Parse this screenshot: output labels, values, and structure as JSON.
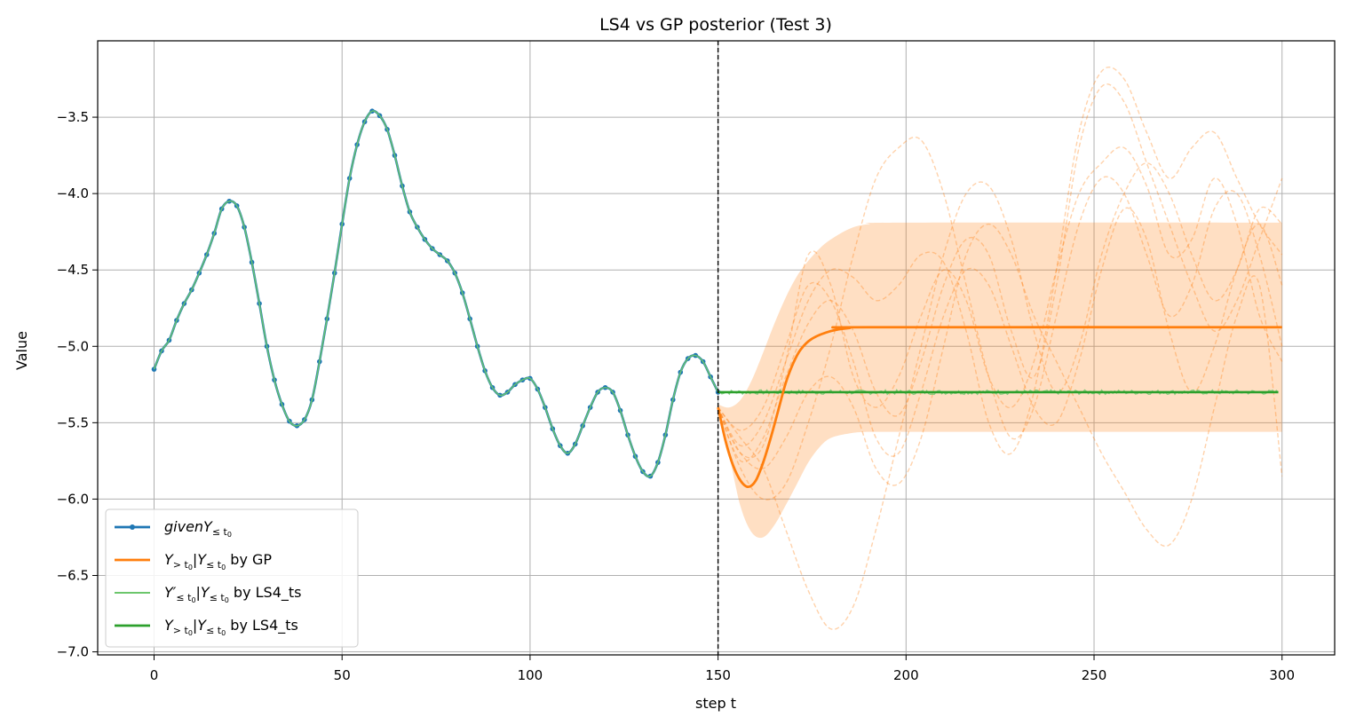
{
  "chart_data": {
    "type": "line",
    "title": "LS4 vs GP posterior (Test 3)",
    "xlabel": "step t",
    "ylabel": "Value",
    "xlim": [
      -15,
      314
    ],
    "ylim": [
      -7.02,
      -3.0
    ],
    "xticks": [
      0,
      50,
      100,
      150,
      200,
      250,
      300
    ],
    "yticks": [
      -7.0,
      -6.5,
      -6.0,
      -5.5,
      -5.0,
      -4.5,
      -4.0,
      -3.5
    ],
    "grid": true,
    "legend_position": "lower-left",
    "vline": {
      "x": 150,
      "style": "dashed",
      "color": "#000000"
    },
    "observed": {
      "color": "#1f77b4",
      "points": [
        [
          0,
          -5.15
        ],
        [
          2,
          -5.03
        ],
        [
          4,
          -4.96
        ],
        [
          6,
          -4.83
        ],
        [
          8,
          -4.72
        ],
        [
          10,
          -4.63
        ],
        [
          12,
          -4.52
        ],
        [
          14,
          -4.4
        ],
        [
          16,
          -4.26
        ],
        [
          18,
          -4.1
        ],
        [
          20,
          -4.05
        ],
        [
          22,
          -4.08
        ],
        [
          24,
          -4.22
        ],
        [
          26,
          -4.45
        ],
        [
          28,
          -4.72
        ],
        [
          30,
          -5.0
        ],
        [
          32,
          -5.22
        ],
        [
          34,
          -5.38
        ],
        [
          36,
          -5.49
        ],
        [
          38,
          -5.52
        ],
        [
          40,
          -5.48
        ],
        [
          42,
          -5.35
        ],
        [
          44,
          -5.1
        ],
        [
          46,
          -4.82
        ],
        [
          48,
          -4.52
        ],
        [
          50,
          -4.2
        ],
        [
          52,
          -3.9
        ],
        [
          54,
          -3.68
        ],
        [
          56,
          -3.53
        ],
        [
          58,
          -3.46
        ],
        [
          60,
          -3.49
        ],
        [
          62,
          -3.58
        ],
        [
          64,
          -3.75
        ],
        [
          66,
          -3.95
        ],
        [
          68,
          -4.12
        ],
        [
          70,
          -4.22
        ],
        [
          72,
          -4.3
        ],
        [
          74,
          -4.36
        ],
        [
          76,
          -4.4
        ],
        [
          78,
          -4.44
        ],
        [
          80,
          -4.52
        ],
        [
          82,
          -4.65
        ],
        [
          84,
          -4.82
        ],
        [
          86,
          -5.0
        ],
        [
          88,
          -5.16
        ],
        [
          90,
          -5.27
        ],
        [
          92,
          -5.32
        ],
        [
          94,
          -5.3
        ],
        [
          96,
          -5.25
        ],
        [
          98,
          -5.22
        ],
        [
          100,
          -5.21
        ],
        [
          102,
          -5.28
        ],
        [
          104,
          -5.4
        ],
        [
          106,
          -5.54
        ],
        [
          108,
          -5.65
        ],
        [
          110,
          -5.7
        ],
        [
          112,
          -5.64
        ],
        [
          114,
          -5.52
        ],
        [
          116,
          -5.4
        ],
        [
          118,
          -5.3
        ],
        [
          120,
          -5.27
        ],
        [
          122,
          -5.3
        ],
        [
          124,
          -5.42
        ],
        [
          126,
          -5.58
        ],
        [
          128,
          -5.72
        ],
        [
          130,
          -5.82
        ],
        [
          132,
          -5.85
        ],
        [
          134,
          -5.76
        ],
        [
          136,
          -5.58
        ],
        [
          138,
          -5.35
        ],
        [
          140,
          -5.17
        ],
        [
          142,
          -5.08
        ],
        [
          144,
          -5.06
        ],
        [
          146,
          -5.1
        ],
        [
          148,
          -5.2
        ],
        [
          150,
          -5.3
        ]
      ]
    },
    "gp_mean": {
      "color": "#ff7f0e",
      "points": [
        [
          150,
          -5.4
        ],
        [
          152,
          -5.62
        ],
        [
          154,
          -5.78
        ],
        [
          156,
          -5.88
        ],
        [
          158,
          -5.92
        ],
        [
          160,
          -5.88
        ],
        [
          162,
          -5.76
        ],
        [
          164,
          -5.6
        ],
        [
          166,
          -5.42
        ],
        [
          168,
          -5.24
        ],
        [
          170,
          -5.11
        ],
        [
          172,
          -5.02
        ],
        [
          175,
          -4.95
        ],
        [
          180,
          -4.9
        ],
        [
          185,
          -4.88
        ],
        [
          190,
          -4.875
        ],
        [
          300,
          -4.875
        ]
      ]
    },
    "gp_band": {
      "color": "#ff7f0e",
      "upper": [
        [
          150,
          -5.38
        ],
        [
          153,
          -5.4
        ],
        [
          156,
          -5.35
        ],
        [
          159,
          -5.22
        ],
        [
          162,
          -5.04
        ],
        [
          165,
          -4.85
        ],
        [
          168,
          -4.68
        ],
        [
          171,
          -4.54
        ],
        [
          174,
          -4.44
        ],
        [
          177,
          -4.36
        ],
        [
          180,
          -4.3
        ],
        [
          185,
          -4.23
        ],
        [
          190,
          -4.2
        ],
        [
          200,
          -4.19
        ],
        [
          300,
          -4.19
        ]
      ],
      "lower": [
        [
          300,
          -5.56
        ],
        [
          200,
          -5.56
        ],
        [
          190,
          -5.56
        ],
        [
          185,
          -5.57
        ],
        [
          180,
          -5.6
        ],
        [
          177,
          -5.66
        ],
        [
          174,
          -5.76
        ],
        [
          171,
          -5.9
        ],
        [
          168,
          -6.04
        ],
        [
          165,
          -6.17
        ],
        [
          162,
          -6.25
        ],
        [
          159,
          -6.22
        ],
        [
          156,
          -6.05
        ],
        [
          153,
          -5.72
        ],
        [
          150,
          -5.42
        ]
      ]
    },
    "gp_samples": [
      [
        [
          150,
          -5.4
        ],
        [
          156,
          -5.7
        ],
        [
          162,
          -5.65
        ],
        [
          168,
          -5.1
        ],
        [
          174,
          -4.4
        ],
        [
          180,
          -4.6
        ],
        [
          186,
          -5.2
        ],
        [
          192,
          -5.4
        ],
        [
          198,
          -5.2
        ],
        [
          204,
          -4.8
        ],
        [
          210,
          -4.5
        ],
        [
          216,
          -4.7
        ],
        [
          222,
          -5.2
        ],
        [
          228,
          -5.4
        ],
        [
          234,
          -5.1
        ],
        [
          240,
          -4.5
        ],
        [
          246,
          -4.0
        ],
        [
          252,
          -3.8
        ],
        [
          258,
          -3.7
        ],
        [
          264,
          -3.95
        ],
        [
          270,
          -4.4
        ],
        [
          276,
          -4.3
        ],
        [
          282,
          -3.9
        ],
        [
          288,
          -4.2
        ],
        [
          294,
          -4.8
        ],
        [
          300,
          -5.1
        ]
      ],
      [
        [
          150,
          -5.4
        ],
        [
          156,
          -5.8
        ],
        [
          162,
          -6.0
        ],
        [
          168,
          -5.9
        ],
        [
          174,
          -5.5
        ],
        [
          180,
          -5.0
        ],
        [
          186,
          -4.4
        ],
        [
          192,
          -3.9
        ],
        [
          198,
          -3.7
        ],
        [
          204,
          -3.65
        ],
        [
          210,
          -4.0
        ],
        [
          216,
          -4.6
        ],
        [
          222,
          -5.2
        ],
        [
          228,
          -5.6
        ],
        [
          234,
          -5.4
        ],
        [
          240,
          -4.8
        ],
        [
          246,
          -4.2
        ],
        [
          252,
          -3.9
        ],
        [
          258,
          -4.0
        ],
        [
          264,
          -4.4
        ],
        [
          270,
          -4.8
        ],
        [
          276,
          -4.6
        ],
        [
          282,
          -4.1
        ],
        [
          288,
          -4.0
        ],
        [
          294,
          -4.4
        ],
        [
          300,
          -5.0
        ]
      ],
      [
        [
          150,
          -5.4
        ],
        [
          156,
          -5.75
        ],
        [
          162,
          -5.6
        ],
        [
          168,
          -5.2
        ],
        [
          174,
          -4.85
        ],
        [
          180,
          -4.7
        ],
        [
          186,
          -4.9
        ],
        [
          192,
          -5.3
        ],
        [
          198,
          -5.45
        ],
        [
          204,
          -5.1
        ],
        [
          210,
          -4.6
        ],
        [
          216,
          -4.3
        ],
        [
          222,
          -4.4
        ],
        [
          228,
          -4.9
        ],
        [
          234,
          -5.2
        ],
        [
          240,
          -4.6
        ],
        [
          246,
          -3.7
        ],
        [
          252,
          -3.3
        ],
        [
          258,
          -3.4
        ],
        [
          264,
          -3.8
        ],
        [
          270,
          -4.2
        ],
        [
          276,
          -4.6
        ],
        [
          282,
          -4.9
        ],
        [
          288,
          -4.7
        ],
        [
          294,
          -4.3
        ],
        [
          300,
          -3.9
        ]
      ],
      [
        [
          150,
          -5.4
        ],
        [
          156,
          -5.6
        ],
        [
          162,
          -5.8
        ],
        [
          168,
          -6.2
        ],
        [
          174,
          -6.6
        ],
        [
          180,
          -6.85
        ],
        [
          186,
          -6.7
        ],
        [
          192,
          -6.2
        ],
        [
          198,
          -5.6
        ],
        [
          204,
          -5.0
        ],
        [
          210,
          -4.4
        ],
        [
          216,
          -4.0
        ],
        [
          222,
          -3.95
        ],
        [
          228,
          -4.3
        ],
        [
          234,
          -4.9
        ],
        [
          240,
          -5.3
        ],
        [
          246,
          -5.0
        ],
        [
          252,
          -4.4
        ],
        [
          258,
          -4.0
        ],
        [
          264,
          -3.8
        ],
        [
          270,
          -4.0
        ],
        [
          276,
          -4.4
        ],
        [
          282,
          -4.7
        ],
        [
          288,
          -4.5
        ],
        [
          294,
          -4.1
        ],
        [
          300,
          -4.2
        ]
      ],
      [
        [
          150,
          -5.4
        ],
        [
          156,
          -5.7
        ],
        [
          162,
          -5.8
        ],
        [
          168,
          -5.6
        ],
        [
          174,
          -5.3
        ],
        [
          180,
          -5.2
        ],
        [
          186,
          -5.4
        ],
        [
          192,
          -5.8
        ],
        [
          198,
          -5.9
        ],
        [
          204,
          -5.6
        ],
        [
          210,
          -5.0
        ],
        [
          216,
          -4.4
        ],
        [
          222,
          -4.2
        ],
        [
          228,
          -4.4
        ],
        [
          234,
          -4.8
        ],
        [
          240,
          -5.1
        ],
        [
          246,
          -5.4
        ],
        [
          252,
          -5.7
        ],
        [
          258,
          -5.95
        ],
        [
          264,
          -6.2
        ],
        [
          270,
          -6.3
        ],
        [
          276,
          -6.0
        ],
        [
          282,
          -5.4
        ],
        [
          288,
          -4.8
        ],
        [
          294,
          -4.6
        ],
        [
          300,
          -5.85
        ]
      ],
      [
        [
          150,
          -5.4
        ],
        [
          156,
          -5.65
        ],
        [
          162,
          -5.5
        ],
        [
          168,
          -5.1
        ],
        [
          174,
          -4.7
        ],
        [
          180,
          -4.5
        ],
        [
          186,
          -4.55
        ],
        [
          192,
          -4.7
        ],
        [
          198,
          -4.6
        ],
        [
          204,
          -4.4
        ],
        [
          210,
          -4.45
        ],
        [
          216,
          -4.9
        ],
        [
          222,
          -5.5
        ],
        [
          228,
          -5.7
        ],
        [
          234,
          -5.3
        ],
        [
          240,
          -4.5
        ],
        [
          246,
          -3.6
        ],
        [
          252,
          -3.2
        ],
        [
          258,
          -3.25
        ],
        [
          264,
          -3.6
        ],
        [
          270,
          -3.9
        ],
        [
          276,
          -3.7
        ],
        [
          282,
          -3.6
        ],
        [
          288,
          -3.9
        ],
        [
          294,
          -4.2
        ],
        [
          300,
          -4.4
        ]
      ],
      [
        [
          150,
          -5.4
        ],
        [
          156,
          -5.55
        ],
        [
          162,
          -5.4
        ],
        [
          168,
          -5.0
        ],
        [
          174,
          -4.6
        ],
        [
          180,
          -4.7
        ],
        [
          186,
          -5.1
        ],
        [
          192,
          -5.6
        ],
        [
          198,
          -5.7
        ],
        [
          204,
          -5.3
        ],
        [
          210,
          -4.8
        ],
        [
          216,
          -4.5
        ],
        [
          222,
          -4.6
        ],
        [
          228,
          -5.0
        ],
        [
          234,
          -5.4
        ],
        [
          240,
          -5.5
        ],
        [
          246,
          -5.1
        ],
        [
          252,
          -4.5
        ],
        [
          258,
          -4.1
        ],
        [
          264,
          -4.3
        ],
        [
          270,
          -4.9
        ],
        [
          276,
          -5.3
        ],
        [
          282,
          -5.0
        ],
        [
          288,
          -4.5
        ],
        [
          294,
          -4.2
        ],
        [
          300,
          -4.6
        ]
      ]
    ],
    "ls4_recon": {
      "color": "#2ca02c",
      "x_range": [
        0,
        150
      ],
      "matches": "observed"
    },
    "ls4_forecast": {
      "color": "#2ca02c",
      "x_range": [
        150,
        299
      ],
      "level": -5.3
    },
    "legend": [
      {
        "key": "observed",
        "text_html": "<tspan font-style='italic'>givenY</tspan><tspan font-size='11' dy='4'>≤ t</tspan><tspan font-size='8' dy='2'>0</tspan>",
        "marker": "line-dot",
        "color": "#1f77b4"
      },
      {
        "key": "gp",
        "text_html": "<tspan font-style='italic'>Y</tspan><tspan font-size='11' dy='4'>&gt; t</tspan><tspan font-size='8' dy='2'>0</tspan><tspan dy='-6'>|</tspan><tspan font-style='italic'>Y</tspan><tspan font-size='11' dy='4'>≤ t</tspan><tspan font-size='8' dy='2'>0</tspan><tspan dy='-6'> by GP</tspan>",
        "marker": "line",
        "color": "#ff7f0e"
      },
      {
        "key": "ls4_recon",
        "text_html": "<tspan font-style='italic'>Y′</tspan><tspan font-size='11' dy='4'>≤ t</tspan><tspan font-size='8' dy='2'>0</tspan><tspan dy='-6'>|</tspan><tspan font-style='italic'>Y</tspan><tspan font-size='11' dy='4'>≤ t</tspan><tspan font-size='8' dy='2'>0</tspan><tspan dy='-6'> by LS4_ts</tspan>",
        "marker": "line",
        "color": "#6cc66c"
      },
      {
        "key": "ls4_forecast",
        "text_html": "<tspan font-style='italic'>Y</tspan><tspan font-size='11' dy='4'>&gt; t</tspan><tspan font-size='8' dy='2'>0</tspan><tspan dy='-6'>|</tspan><tspan font-style='italic'>Y</tspan><tspan font-size='11' dy='4'>≤ t</tspan><tspan font-size='8' dy='2'>0</tspan><tspan dy='-6'> by LS4_ts</tspan>",
        "marker": "line",
        "color": "#2ca02c"
      }
    ]
  }
}
